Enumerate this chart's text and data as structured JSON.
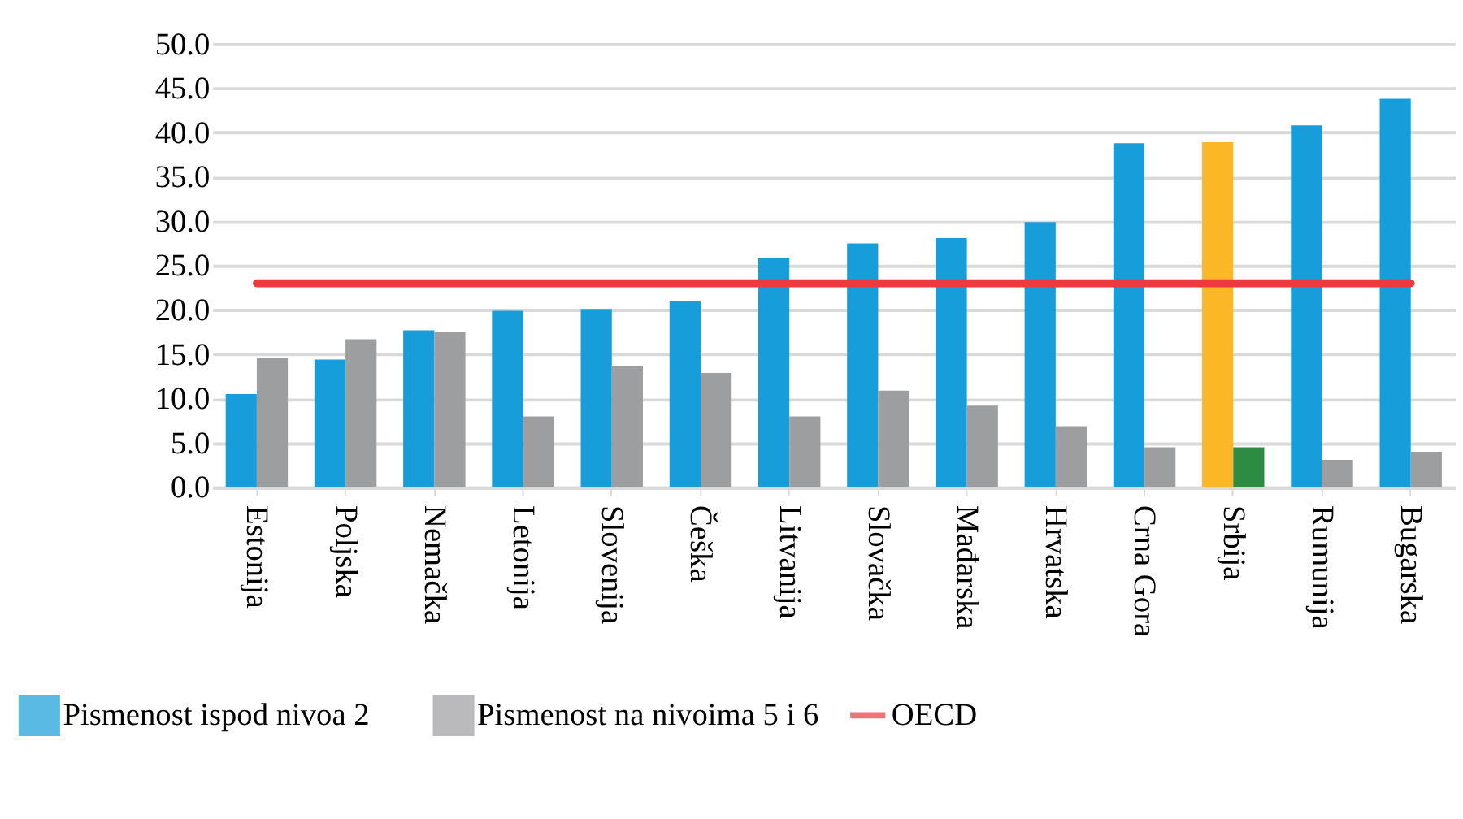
{
  "chart_data": {
    "type": "bar",
    "categories": [
      "Estonija",
      "Poljska",
      "Nemačka",
      "Letonija",
      "Slovenija",
      "Češka",
      "Litvanija",
      "Slovačka",
      "Mađarska",
      "Hrvatska",
      "Crna Gora",
      "Srbija",
      "Rumunija",
      "Bugarska"
    ],
    "series": [
      {
        "name": "Pismenost ispod nivoa 2",
        "color": "#179dd9",
        "colors": [
          "#179dd9",
          "#179dd9",
          "#179dd9",
          "#179dd9",
          "#179dd9",
          "#179dd9",
          "#179dd9",
          "#179dd9",
          "#179dd9",
          "#179dd9",
          "#179dd9",
          "#fbb725",
          "#179dd9",
          "#179dd9"
        ],
        "values": [
          10.5,
          14.4,
          17.7,
          19.9,
          20.1,
          21.0,
          25.9,
          27.5,
          28.1,
          29.9,
          38.8,
          38.9,
          40.8,
          43.8
        ]
      },
      {
        "name": "Pismenost na nivoima 5 i 6",
        "color": "#9d9ea0",
        "colors": [
          "#9d9ea0",
          "#9d9ea0",
          "#9d9ea0",
          "#9d9ea0",
          "#9d9ea0",
          "#9d9ea0",
          "#9d9ea0",
          "#9d9ea0",
          "#9d9ea0",
          "#9d9ea0",
          "#9d9ea0",
          "#2e8b43",
          "#9d9ea0",
          "#9d9ea0"
        ],
        "values": [
          14.6,
          16.7,
          17.5,
          8.0,
          13.7,
          12.9,
          8.0,
          10.9,
          9.2,
          6.9,
          4.5,
          4.5,
          3.1,
          4.0
        ]
      },
      {
        "name": "OECD",
        "type": "line",
        "color": "#ee3a3f",
        "values": [
          23.0,
          23.0,
          23.0,
          23.0,
          23.0,
          23.0,
          23.0,
          23.0,
          23.0,
          23.0,
          23.0,
          23.0,
          23.0,
          23.0
        ]
      }
    ],
    "ylim": [
      0,
      50
    ],
    "yticks": [
      {
        "value": 0,
        "label": "0.0"
      },
      {
        "value": 5,
        "label": "5.0"
      },
      {
        "value": 10,
        "label": "10.0"
      },
      {
        "value": 15,
        "label": "15.0"
      },
      {
        "value": 20,
        "label": "20.0"
      },
      {
        "value": 25,
        "label": "25.0"
      },
      {
        "value": 30,
        "label": "30.0"
      },
      {
        "value": 35,
        "label": "35.0"
      },
      {
        "value": 40,
        "label": "40.0"
      },
      {
        "value": 45,
        "label": "45.0"
      },
      {
        "value": 50,
        "label": "50.0"
      }
    ],
    "grid": "y",
    "legend": "bottom"
  }
}
